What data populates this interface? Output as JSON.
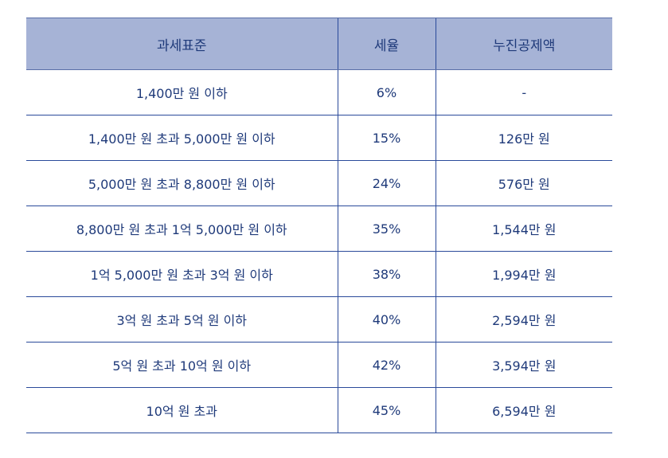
{
  "headers": [
    "과세표준",
    "세율",
    "누진공제액"
  ],
  "rows": [
    {
      "bracket": "1,400만 원 이하",
      "rate": "6%",
      "deduction": "-"
    },
    {
      "bracket": "1,400만 원 초과 5,000만 원 이하",
      "rate": "15%",
      "deduction": "126만 원"
    },
    {
      "bracket": "5,000만 원 초과 8,800만 원 이하",
      "rate": "24%",
      "deduction": "576만 원"
    },
    {
      "bracket": "8,800만 원 초과 1억 5,000만 원 이하",
      "rate": "35%",
      "deduction": "1,544만 원"
    },
    {
      "bracket": "1억 5,000만 원 초과 3억 원 이하",
      "rate": "38%",
      "deduction": "1,994만 원"
    },
    {
      "bracket": "3억 원 초과 5억 원 이하",
      "rate": "40%",
      "deduction": "2,594만 원"
    },
    {
      "bracket": "5억 원 초과 10억 원 이하",
      "rate": "42%",
      "deduction": "3,594만 원"
    },
    {
      "bracket": "10억 원 초과",
      "rate": "45%",
      "deduction": "6,594만 원"
    }
  ],
  "colors": {
    "header_bg": "#a6b3d6",
    "text": "#1f3a7a",
    "border": "#2a4a9a"
  }
}
